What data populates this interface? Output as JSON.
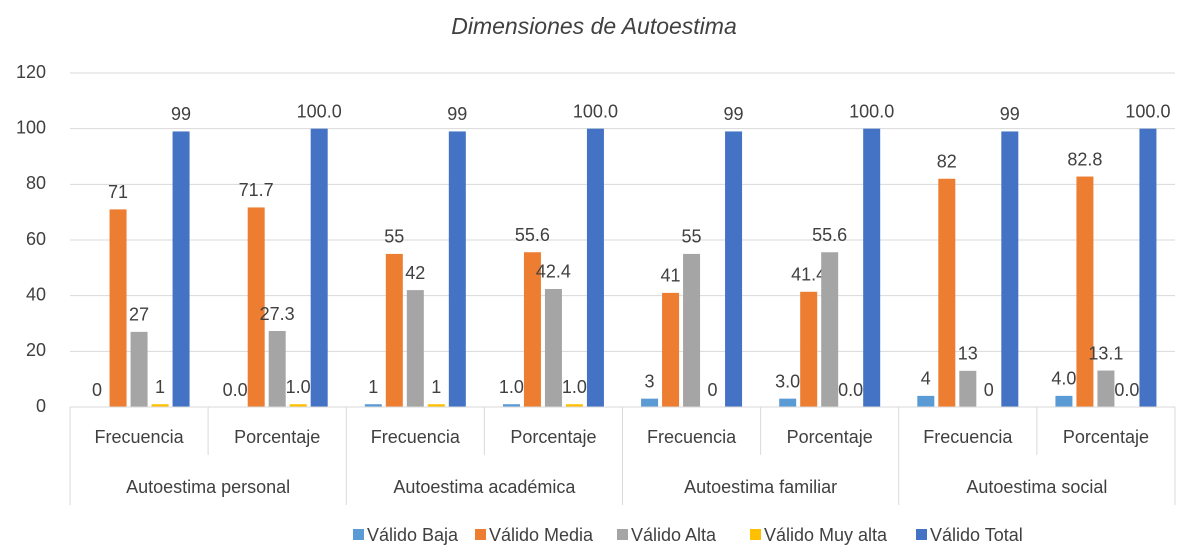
{
  "chart_data": {
    "type": "bar",
    "title": "Dimensiones de Autoestima",
    "categories": [
      "Frecuencia",
      "Porcentaje",
      "Frecuencia",
      "Porcentaje",
      "Frecuencia",
      "Porcentaje",
      "Frecuencia",
      "Porcentaje"
    ],
    "group_labels": [
      "Autoestima personal",
      "Autoestima académica",
      "Autoestima familiar",
      "Autoestima social"
    ],
    "series": [
      {
        "name": "Válido Baja",
        "color": "#5b9bd5",
        "values": [
          0,
          0.0,
          1,
          1.0,
          3,
          3.0,
          4,
          4.0
        ],
        "value_labels": [
          "0",
          "0.0",
          "1",
          "1.0",
          "3",
          "3.0",
          "4",
          "4.0"
        ]
      },
      {
        "name": "Válido Media",
        "color": "#ed7d31",
        "values": [
          71,
          71.7,
          55,
          55.6,
          41,
          41.4,
          82,
          82.8
        ],
        "value_labels": [
          "71",
          "71.7",
          "55",
          "55.6",
          "41",
          "41.4",
          "82",
          "82.8"
        ]
      },
      {
        "name": "Válido Alta",
        "color": "#a5a5a5",
        "values": [
          27,
          27.3,
          42,
          42.4,
          55,
          55.6,
          13,
          13.1
        ],
        "value_labels": [
          "27",
          "27.3",
          "42",
          "42.4",
          "55",
          "55.6",
          "13",
          "13.1"
        ]
      },
      {
        "name": "Válido Muy alta",
        "color": "#ffc000",
        "values": [
          1,
          1.0,
          1,
          1.0,
          0,
          0.0,
          0,
          0.0
        ],
        "value_labels": [
          "1",
          "1.0",
          "1",
          "1.0",
          "0",
          "0.0",
          "0",
          "0.0"
        ]
      },
      {
        "name": "Válido Total",
        "color": "#4472c4",
        "values": [
          99,
          100.0,
          99,
          100.0,
          99,
          100.0,
          99,
          100.0
        ],
        "value_labels": [
          "99",
          "100.0",
          "99",
          "100.0",
          "99",
          "100.0",
          "99",
          "100.0"
        ]
      }
    ],
    "ylim": [
      0,
      120
    ],
    "yticks": [
      0,
      20,
      40,
      60,
      80,
      100,
      120
    ],
    "grid": true,
    "legend": "bottom"
  }
}
